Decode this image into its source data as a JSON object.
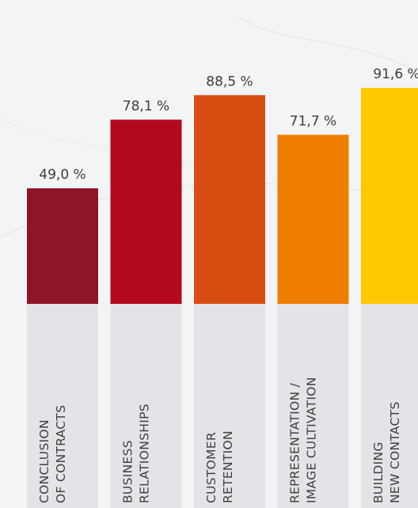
{
  "chart_data": {
    "type": "bar",
    "categories": [
      [
        "CONCLUSION",
        "OF CONTRACTS"
      ],
      [
        "BUSINESS",
        "RELATIONSHIPS"
      ],
      [
        "CUSTOMER",
        "RETENTION"
      ],
      [
        "REPRESENTATION /",
        "IMAGE CULTIVATION"
      ],
      [
        "BUILDING",
        "NEW CONTACTS"
      ]
    ],
    "values": [
      49.0,
      78.1,
      88.5,
      71.7,
      91.6
    ],
    "value_labels": [
      "49,0 %",
      "78,1 %",
      "88,5 %",
      "71,7 %",
      "91,6 %"
    ],
    "colors": [
      "#8e1528",
      "#b3081e",
      "#d84e12",
      "#ef7d00",
      "#fdc800"
    ],
    "label_band_color": "#e3e4e7",
    "ylim": [
      0,
      100
    ],
    "grid": false,
    "legend": "none"
  }
}
